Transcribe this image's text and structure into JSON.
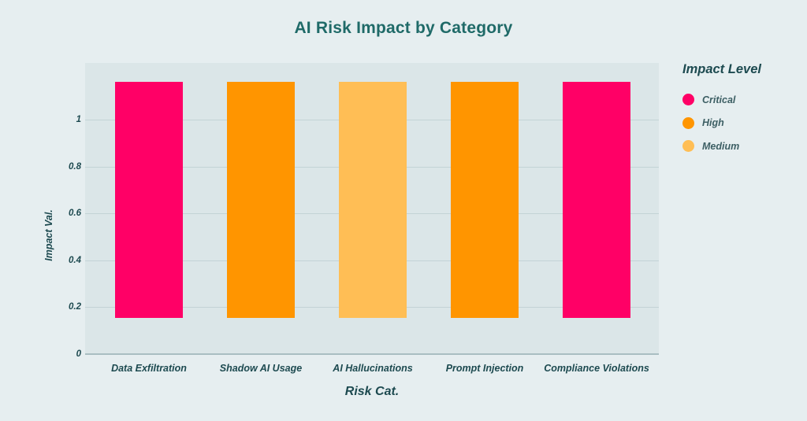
{
  "chart_data": {
    "type": "bar",
    "title": "AI Risk Impact by Category",
    "xlabel": "Risk Cat.",
    "ylabel": "Impact Val.",
    "categories": [
      "Data Exfiltration",
      "Shadow AI Usage",
      "AI Hallucinations",
      "Prompt Injection",
      "Compliance Violations"
    ],
    "bar_ranges": [
      [
        0.155,
        1.16
      ],
      [
        0.155,
        1.16
      ],
      [
        0.155,
        1.16
      ],
      [
        0.155,
        1.16
      ],
      [
        0.155,
        1.16
      ]
    ],
    "impact_levels": [
      "Critical",
      "High",
      "Medium",
      "High",
      "Critical"
    ],
    "yticks": [
      "0",
      "0.2",
      "0.4",
      "0.6",
      "0.8",
      "1"
    ],
    "ytick_values": [
      0,
      0.2,
      0.4,
      0.6,
      0.8,
      1
    ],
    "ylim": [
      0,
      1.24
    ],
    "grid": true,
    "legend": {
      "title": "Impact Level",
      "position": "right",
      "entries": [
        {
          "label": "Critical",
          "color": "#ff0066"
        },
        {
          "label": "High",
          "color": "#ff9500"
        },
        {
          "label": "Medium",
          "color": "#ffbe55"
        }
      ]
    }
  },
  "colors": {
    "Critical": "#ff0066",
    "High": "#ff9500",
    "Medium": "#ffbe55",
    "background": "#e6eef0",
    "plot_background": "#dbe6e8",
    "title": "#1f6a68"
  }
}
